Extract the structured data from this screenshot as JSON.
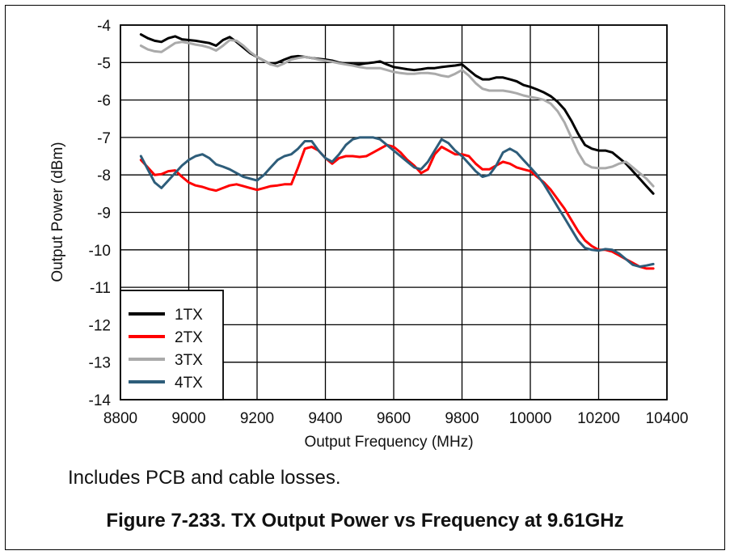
{
  "chart_data": {
    "type": "line",
    "title": "",
    "xlabel": "Output Frequency (MHz)",
    "ylabel": "Output Power (dBm)",
    "xlim": [
      8800,
      10400
    ],
    "ylim": [
      -14,
      -4
    ],
    "xticks": [
      8800,
      9000,
      9200,
      9400,
      9600,
      9800,
      10000,
      10200,
      10400
    ],
    "yticks": [
      -4,
      -5,
      -6,
      -7,
      -8,
      -9,
      -10,
      -11,
      -12,
      -13,
      -14
    ],
    "grid": true,
    "legend_position": "bottom-left",
    "x": [
      8860,
      8880,
      8900,
      8920,
      8940,
      8960,
      8980,
      9000,
      9020,
      9040,
      9060,
      9080,
      9100,
      9120,
      9140,
      9160,
      9180,
      9200,
      9220,
      9240,
      9260,
      9280,
      9300,
      9320,
      9340,
      9360,
      9380,
      9400,
      9420,
      9440,
      9460,
      9480,
      9500,
      9520,
      9540,
      9560,
      9580,
      9600,
      9620,
      9640,
      9660,
      9680,
      9700,
      9720,
      9740,
      9760,
      9780,
      9800,
      9820,
      9840,
      9860,
      9880,
      9900,
      9920,
      9940,
      9960,
      9980,
      10000,
      10020,
      10040,
      10060,
      10080,
      10100,
      10120,
      10140,
      10160,
      10180,
      10200,
      10220,
      10240,
      10260,
      10280,
      10300,
      10320,
      10340,
      10360
    ],
    "series": [
      {
        "name": "1TX",
        "color": "#000000",
        "values": [
          -4.25,
          -4.35,
          -4.42,
          -4.45,
          -4.35,
          -4.3,
          -4.38,
          -4.4,
          -4.42,
          -4.45,
          -4.48,
          -4.55,
          -4.4,
          -4.32,
          -4.45,
          -4.6,
          -4.75,
          -4.85,
          -4.95,
          -5.05,
          -5.0,
          -4.92,
          -4.85,
          -4.83,
          -4.85,
          -4.88,
          -4.9,
          -4.92,
          -4.95,
          -5.0,
          -5.03,
          -5.05,
          -5.05,
          -5.02,
          -5.0,
          -4.97,
          -5.05,
          -5.12,
          -5.15,
          -5.18,
          -5.2,
          -5.18,
          -5.15,
          -5.15,
          -5.12,
          -5.1,
          -5.08,
          -5.05,
          -5.2,
          -5.35,
          -5.45,
          -5.45,
          -5.4,
          -5.4,
          -5.45,
          -5.5,
          -5.6,
          -5.65,
          -5.72,
          -5.8,
          -5.9,
          -6.05,
          -6.25,
          -6.55,
          -6.9,
          -7.2,
          -7.3,
          -7.35,
          -7.35,
          -7.4,
          -7.55,
          -7.7,
          -7.9,
          -8.1,
          -8.3,
          -8.5
        ]
      },
      {
        "name": "2TX",
        "color": "#ff0000",
        "values": [
          -7.6,
          -7.8,
          -8.0,
          -7.98,
          -7.9,
          -7.88,
          -8.05,
          -8.2,
          -8.28,
          -8.32,
          -8.38,
          -8.42,
          -8.35,
          -8.28,
          -8.25,
          -8.3,
          -8.35,
          -8.4,
          -8.35,
          -8.3,
          -8.28,
          -8.25,
          -8.25,
          -7.8,
          -7.3,
          -7.25,
          -7.35,
          -7.55,
          -7.7,
          -7.55,
          -7.5,
          -7.5,
          -7.52,
          -7.5,
          -7.4,
          -7.3,
          -7.2,
          -7.25,
          -7.4,
          -7.6,
          -7.75,
          -7.95,
          -7.85,
          -7.45,
          -7.25,
          -7.35,
          -7.45,
          -7.45,
          -7.5,
          -7.7,
          -7.85,
          -7.85,
          -7.75,
          -7.65,
          -7.7,
          -7.8,
          -7.85,
          -7.9,
          -8.05,
          -8.2,
          -8.4,
          -8.65,
          -8.9,
          -9.2,
          -9.5,
          -9.75,
          -9.9,
          -10.0,
          -10.0,
          -10.05,
          -10.15,
          -10.25,
          -10.35,
          -10.45,
          -10.5,
          -10.5
        ]
      },
      {
        "name": "3TX",
        "color": "#aaaaaa",
        "values": [
          -4.55,
          -4.65,
          -4.7,
          -4.72,
          -4.6,
          -4.48,
          -4.45,
          -4.48,
          -4.52,
          -4.55,
          -4.6,
          -4.68,
          -4.55,
          -4.4,
          -4.42,
          -4.55,
          -4.72,
          -4.85,
          -4.95,
          -5.05,
          -5.1,
          -5.02,
          -4.92,
          -4.88,
          -4.85,
          -4.88,
          -4.92,
          -4.95,
          -4.98,
          -5.02,
          -5.05,
          -5.08,
          -5.12,
          -5.15,
          -5.15,
          -5.15,
          -5.2,
          -5.25,
          -5.28,
          -5.3,
          -5.3,
          -5.28,
          -5.28,
          -5.3,
          -5.35,
          -5.38,
          -5.3,
          -5.2,
          -5.35,
          -5.55,
          -5.7,
          -5.75,
          -5.75,
          -5.75,
          -5.78,
          -5.82,
          -5.88,
          -5.92,
          -5.95,
          -6.0,
          -6.1,
          -6.3,
          -6.6,
          -7.0,
          -7.4,
          -7.7,
          -7.8,
          -7.82,
          -7.82,
          -7.78,
          -7.7,
          -7.65,
          -7.8,
          -7.95,
          -8.1,
          -8.3
        ]
      },
      {
        "name": "4TX",
        "color": "#2e5d7a",
        "values": [
          -7.5,
          -7.85,
          -8.2,
          -8.35,
          -8.15,
          -7.95,
          -7.75,
          -7.6,
          -7.5,
          -7.45,
          -7.55,
          -7.72,
          -7.78,
          -7.85,
          -7.95,
          -8.05,
          -8.1,
          -8.15,
          -8.0,
          -7.8,
          -7.6,
          -7.5,
          -7.45,
          -7.3,
          -7.1,
          -7.1,
          -7.35,
          -7.55,
          -7.65,
          -7.45,
          -7.2,
          -7.05,
          -7.0,
          -7.0,
          -7.0,
          -7.05,
          -7.2,
          -7.35,
          -7.5,
          -7.65,
          -7.8,
          -7.85,
          -7.65,
          -7.35,
          -7.05,
          -7.15,
          -7.35,
          -7.5,
          -7.7,
          -7.9,
          -8.05,
          -8.0,
          -7.75,
          -7.4,
          -7.3,
          -7.4,
          -7.6,
          -7.8,
          -8.0,
          -8.25,
          -8.55,
          -8.85,
          -9.15,
          -9.45,
          -9.75,
          -9.95,
          -10.0,
          -10.02,
          -9.98,
          -10.0,
          -10.1,
          -10.25,
          -10.4,
          -10.45,
          -10.42,
          -10.38
        ]
      }
    ]
  },
  "note": "Includes PCB and cable losses.",
  "caption": "Figure 7-233. TX Output Power vs Frequency at 9.61GHz"
}
